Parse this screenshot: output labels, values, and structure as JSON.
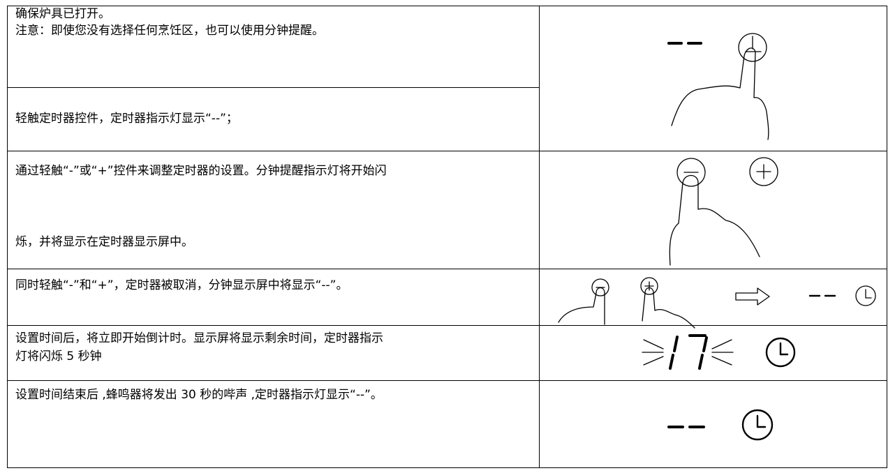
{
  "table": {
    "rows": [
      {
        "lines": [
          "确保炉具已打开。",
          "注意：即使您没有选择任何烹饪区，也可以使用分钟提醒。"
        ]
      },
      {
        "lines": [
          "轻触定时器控件，定时器指示灯显示“--”；"
        ]
      },
      {
        "lines": [
          "通过轻触“-”或“+”控件来调整定时器的设置。分钟提醒指示灯将开始闪",
          "烁，并将显示在定时器显示屏中。"
        ]
      },
      {
        "lines": [
          "同时轻触“-”和“+”，定时器被取消，分钟显示屏中将显示“--”。"
        ]
      },
      {
        "lines": [
          "设置时间后，将立即开始倒计时。显示屏将显示剩余时间，定时器指示",
          "灯将闪烁 5 秒钟"
        ]
      },
      {
        "lines": [
          "设置时间结束后 ,蜂鸣器将发出 30 秒的哔声 ,定时器指示灯显示“--”。"
        ]
      }
    ]
  }
}
